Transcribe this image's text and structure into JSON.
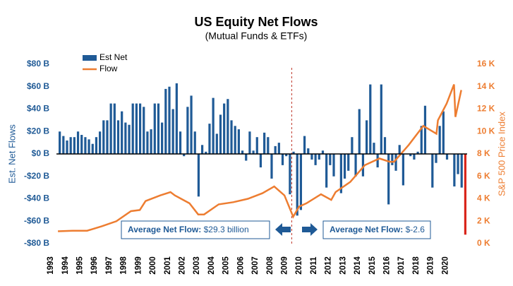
{
  "chart_data": {
    "type": "bar",
    "title": "US Equity Net Flows",
    "subtitle": "(Mutual Funds & ETFs)",
    "ylabel": "Est. Net Flows",
    "y2label": "S&P 500 Price Index",
    "xlim": [
      1992.9,
      2021
    ],
    "xticks": [
      1993,
      1994,
      1995,
      1996,
      1997,
      1998,
      1999,
      2000,
      2001,
      2002,
      2003,
      2004,
      2005,
      2006,
      2007,
      2008,
      2009,
      2010,
      2011,
      2012,
      2013,
      2014,
      2015,
      2016,
      2017,
      2018,
      2019,
      2020
    ],
    "ylim": [
      -80,
      80
    ],
    "yticks": [
      {
        "value": -80,
        "label": "-$80 B"
      },
      {
        "value": -60,
        "label": "-$60 B"
      },
      {
        "value": -40,
        "label": "-$40 B"
      },
      {
        "value": -20,
        "label": "-$20 B"
      },
      {
        "value": 0,
        "label": "$0 B"
      },
      {
        "value": 20,
        "label": "$20 B"
      },
      {
        "value": 40,
        "label": "$40 B"
      },
      {
        "value": 60,
        "label": "$60 B"
      },
      {
        "value": 80,
        "label": "$80 B"
      }
    ],
    "y2lim": [
      0,
      16000
    ],
    "y2ticks": [
      {
        "value": 0,
        "label": "0 K"
      },
      {
        "value": 2000,
        "label": "2 K"
      },
      {
        "value": 4000,
        "label": "4 K"
      },
      {
        "value": 6000,
        "label": "6 K"
      },
      {
        "value": 8000,
        "label": "8 K"
      },
      {
        "value": 10000,
        "label": "10 K"
      },
      {
        "value": 12000,
        "label": "12 K"
      },
      {
        "value": 14000,
        "label": "14 K"
      },
      {
        "value": 16000,
        "label": "16 K"
      }
    ],
    "legend": "upper left",
    "divider": {
      "x": 2009,
      "color": "#c0392b"
    },
    "annotations": [
      {
        "label": "Average Net Flow:",
        "value": "$29.3 billion"
      },
      {
        "label": "Average Net Flow:",
        "value": "$-2.6"
      }
    ],
    "series": [
      {
        "name": "Est Net",
        "type": "bar",
        "color": "#1f5a96",
        "last_color": "#d9261c",
        "x": [
          1993.125,
          1993.375,
          1993.625,
          1993.875,
          1994.125,
          1994.375,
          1994.625,
          1994.875,
          1995.125,
          1995.375,
          1995.625,
          1995.875,
          1996.125,
          1996.375,
          1996.625,
          1996.875,
          1997.125,
          1997.375,
          1997.625,
          1997.875,
          1998.125,
          1998.375,
          1998.625,
          1998.875,
          1999.125,
          1999.375,
          1999.625,
          1999.875,
          2000.125,
          2000.375,
          2000.625,
          2000.875,
          2001.125,
          2001.375,
          2001.625,
          2001.875,
          2002.125,
          2002.375,
          2002.625,
          2002.875,
          2003.125,
          2003.375,
          2003.625,
          2003.875,
          2004.125,
          2004.375,
          2004.625,
          2004.875,
          2005.125,
          2005.375,
          2005.625,
          2005.875,
          2006.125,
          2006.375,
          2006.625,
          2006.875,
          2007.125,
          2007.375,
          2007.625,
          2007.875,
          2008.125,
          2008.375,
          2008.625,
          2008.875,
          2009.125,
          2009.375,
          2009.625,
          2009.875,
          2010.125,
          2010.375,
          2010.625,
          2010.875,
          2011.125,
          2011.375,
          2011.625,
          2011.875,
          2012.125,
          2012.375,
          2012.625,
          2012.875,
          2013.125,
          2013.375,
          2013.625,
          2013.875,
          2014.125,
          2014.375,
          2014.625,
          2014.875,
          2015.125,
          2015.375,
          2015.625,
          2015.875,
          2016.125,
          2016.375,
          2016.625,
          2016.875,
          2017.125,
          2017.375,
          2017.625,
          2017.875,
          2018.125,
          2018.375,
          2018.625,
          2018.875,
          2019.125,
          2019.375,
          2019.625,
          2019.875,
          2020.125,
          2020.375,
          2020.625,
          2020.875
        ],
        "values": [
          20,
          16,
          12,
          15,
          15,
          20,
          17,
          15,
          13,
          9,
          15,
          20,
          30,
          30,
          45,
          45,
          30,
          38,
          28,
          26,
          45,
          45,
          45,
          42,
          20,
          22,
          45,
          45,
          28,
          58,
          60,
          40,
          63,
          20,
          -2,
          42,
          52,
          20,
          -38,
          8,
          2,
          27,
          50,
          18,
          35,
          45,
          49,
          30,
          25,
          22,
          3,
          -6,
          20,
          3,
          15,
          -12,
          19,
          15,
          -22,
          7,
          10,
          -10,
          -2,
          -36,
          2,
          -55,
          -50,
          16,
          5,
          -5,
          -10,
          -5,
          3,
          -30,
          -10,
          -20,
          0,
          -35,
          -22,
          -15,
          15,
          -20,
          40,
          -20,
          30,
          62,
          10,
          -12,
          62,
          15,
          -45,
          -10,
          -15,
          8,
          -28,
          0,
          -2,
          -5,
          2,
          25,
          43,
          0,
          -30,
          -8,
          25,
          38,
          -5,
          0,
          -29,
          -18,
          -30,
          -72
        ]
      },
      {
        "name": "Flow",
        "type": "line",
        "axis": "y2",
        "color": "#ed7d31",
        "x": [
          1993,
          1994,
          1995,
          1996,
          1997,
          1998,
          1998.6,
          1999,
          2000,
          2000.7,
          2001,
          2002,
          2002.6,
          2003,
          2004,
          2005,
          2006,
          2007,
          2007.8,
          2008.5,
          2009.1,
          2009.5,
          2010,
          2011,
          2011.7,
          2012,
          2013,
          2014,
          2015,
          2015.7,
          2016,
          2017,
          2018,
          2018.9,
          2019,
          2019.6,
          2020.1,
          2020.2,
          2020.6
        ],
        "values": [
          1100,
          1150,
          1150,
          1550,
          2000,
          2900,
          3000,
          3800,
          4300,
          4600,
          4300,
          3600,
          2600,
          2600,
          3500,
          3700,
          4000,
          4500,
          5100,
          4300,
          2400,
          3300,
          3600,
          4400,
          3900,
          4600,
          5500,
          7000,
          7600,
          7300,
          7300,
          8800,
          10500,
          9800,
          11000,
          12500,
          14200,
          11300,
          13700
        ]
      }
    ]
  }
}
